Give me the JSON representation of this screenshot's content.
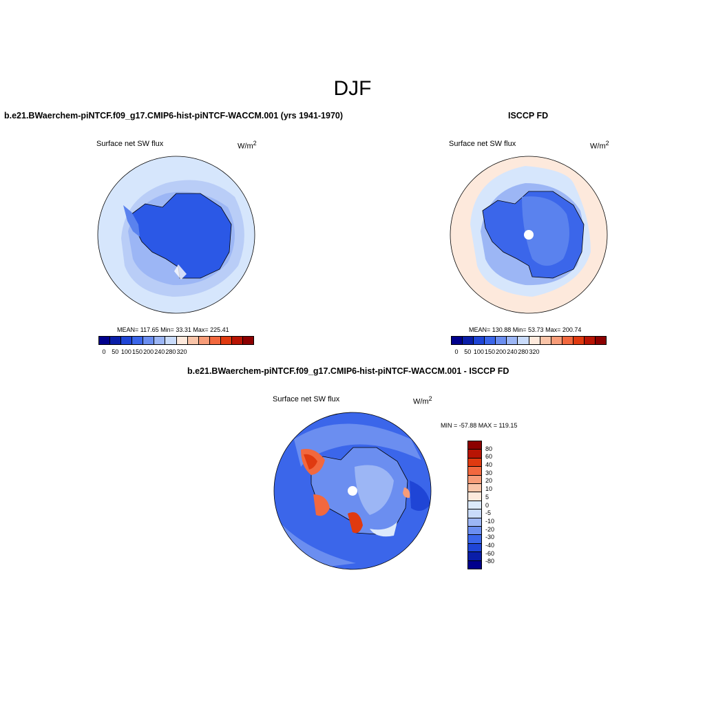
{
  "suptitle": "DJF",
  "panels": [
    {
      "title": "b.e21.BWaerchem-piNTCF.f09_g17.CMIP6-hist-piNTCF-WACCM.001 (yrs 1941-1970)",
      "variable_label": "Surface net SW flux",
      "units": "W/m",
      "units_sup": "2",
      "stats": "MEAN= 117.65  Min=  33.31  Max= 225.41",
      "colorbar_ticks": [
        "0",
        "50",
        "100",
        "150",
        "200",
        "240",
        "280",
        "320"
      ]
    },
    {
      "title": "ISCCP FD",
      "variable_label": "Surface net SW flux",
      "units": "W/m",
      "units_sup": "2",
      "stats": "MEAN= 130.88  Min=  53.73  Max= 200.74",
      "colorbar_ticks": [
        "0",
        "50",
        "100",
        "150",
        "200",
        "240",
        "280",
        "320"
      ]
    },
    {
      "title": "b.e21.BWaerchem-piNTCF.f09_g17.CMIP6-hist-piNTCF-WACCM.001 - ISCCP FD",
      "variable_label": "Surface net SW flux",
      "units": "W/m",
      "units_sup": "2",
      "stats": "MIN = -57.88 MAX = 119.15",
      "colorbar_labels": [
        "80",
        "60",
        "40",
        "30",
        "20",
        "10",
        "5",
        "0",
        "-5",
        "-10",
        "-20",
        "-30",
        "-40",
        "-60",
        "-80"
      ]
    }
  ],
  "colors": {
    "abs_scale": [
      "#00008c",
      "#0a1ea8",
      "#1f45d6",
      "#3b66ea",
      "#6b8ef0",
      "#9cb6f5",
      "#c9dbfa",
      "#fde9dc",
      "#f9c4a8",
      "#f79c78",
      "#f2683e",
      "#e03a10",
      "#b81404",
      "#8c0000"
    ],
    "diff_scale": [
      "#8c0000",
      "#b81404",
      "#e03a10",
      "#f2683e",
      "#f79c78",
      "#f9c4a8",
      "#fde9dc",
      "#dce9fb",
      "#c9dbfa",
      "#9cb6f5",
      "#6b8ef0",
      "#3b66ea",
      "#1f45d6",
      "#0a1ea8",
      "#00008c"
    ],
    "map_ocean_light": "#d6e6fc",
    "map_ocean_mid": "#9cb6f5",
    "map_ocean_deep": "#6b8ef0",
    "map_antarctica": "#2b58e6",
    "map_warm": "#fde9dc",
    "missing_data": "#ffffff"
  }
}
